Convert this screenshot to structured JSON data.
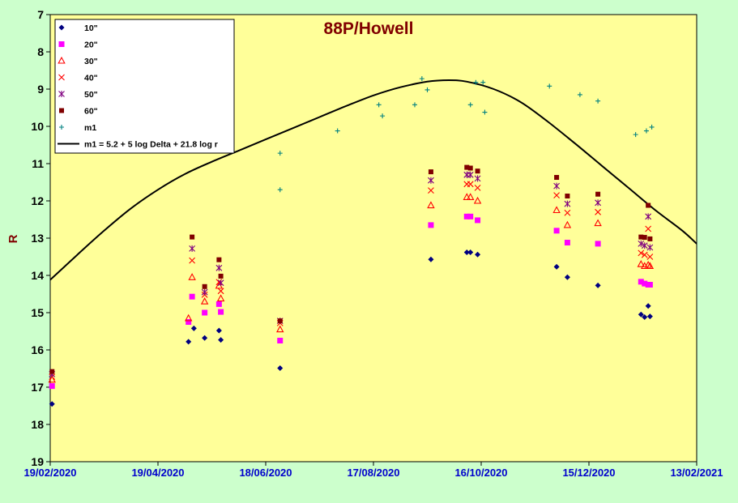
{
  "chart_data": {
    "type": "scatter",
    "title": "88P/Howell",
    "ylabel": "R",
    "xlabel": "",
    "x_is_date": true,
    "xlim": [
      "2020-02-19",
      "2021-02-13"
    ],
    "ylim": [
      7,
      19
    ],
    "y_inverted": true,
    "grid": false,
    "legend_position": "top-left",
    "x_tick_labels": [
      "19/02/2020",
      "19/04/2020",
      "18/06/2020",
      "17/08/2020",
      "16/10/2020",
      "15/12/2020",
      "13/02/2021"
    ],
    "x_tick_dates": [
      "2020-02-19",
      "2020-04-19",
      "2020-06-18",
      "2020-08-17",
      "2020-10-16",
      "2020-12-15",
      "2021-02-13"
    ],
    "y_ticks": [
      7,
      8,
      9,
      10,
      11,
      12,
      13,
      14,
      15,
      16,
      17,
      18,
      19
    ],
    "colors": {
      "plot_background": "#ffff99",
      "page_background": "#ccffcc",
      "x_tick_color": "#0000cc",
      "title_color": "#800000"
    },
    "series": [
      {
        "name": "10\"",
        "marker": "diamond",
        "color": "#000080",
        "points": [
          [
            "2020-02-20",
            17.45
          ],
          [
            "2020-05-06",
            15.78
          ],
          [
            "2020-05-09",
            15.42
          ],
          [
            "2020-05-15",
            15.68
          ],
          [
            "2020-05-23",
            15.48
          ],
          [
            "2020-05-24",
            15.73
          ],
          [
            "2020-06-26",
            16.49
          ],
          [
            "2020-09-18",
            13.57
          ],
          [
            "2020-10-08",
            13.38
          ],
          [
            "2020-10-10",
            13.38
          ],
          [
            "2020-10-14",
            13.44
          ],
          [
            "2020-11-27",
            13.77
          ],
          [
            "2020-12-03",
            14.05
          ],
          [
            "2020-12-20",
            14.27
          ],
          [
            "2021-01-13",
            15.05
          ],
          [
            "2021-01-15",
            15.12
          ],
          [
            "2021-01-17",
            14.82
          ],
          [
            "2021-01-18",
            15.1
          ]
        ]
      },
      {
        "name": "20\"",
        "marker": "square",
        "color": "#ff00ff",
        "points": [
          [
            "2020-02-20",
            16.97
          ],
          [
            "2020-05-06",
            15.25
          ],
          [
            "2020-05-08",
            14.57
          ],
          [
            "2020-05-15",
            15.0
          ],
          [
            "2020-05-23",
            14.77
          ],
          [
            "2020-05-24",
            14.98
          ],
          [
            "2020-06-26",
            15.75
          ],
          [
            "2020-09-18",
            12.65
          ],
          [
            "2020-10-08",
            12.42
          ],
          [
            "2020-10-10",
            12.42
          ],
          [
            "2020-10-14",
            12.52
          ],
          [
            "2020-11-27",
            12.8
          ],
          [
            "2020-12-03",
            13.12
          ],
          [
            "2020-12-20",
            13.15
          ],
          [
            "2021-01-13",
            14.17
          ],
          [
            "2021-01-15",
            14.22
          ],
          [
            "2021-01-17",
            14.25
          ],
          [
            "2021-01-18",
            14.25
          ]
        ]
      },
      {
        "name": "30\"",
        "marker": "triangle",
        "color": "#ff0000",
        "points": [
          [
            "2020-02-20",
            16.8
          ],
          [
            "2020-05-06",
            15.15
          ],
          [
            "2020-05-08",
            14.05
          ],
          [
            "2020-05-15",
            14.7
          ],
          [
            "2020-05-23",
            14.28
          ],
          [
            "2020-05-24",
            14.62
          ],
          [
            "2020-06-26",
            15.45
          ],
          [
            "2020-09-18",
            12.12
          ],
          [
            "2020-10-08",
            11.9
          ],
          [
            "2020-10-10",
            11.9
          ],
          [
            "2020-10-14",
            12.0
          ],
          [
            "2020-11-27",
            12.25
          ],
          [
            "2020-12-03",
            12.65
          ],
          [
            "2020-12-20",
            12.6
          ],
          [
            "2021-01-13",
            13.7
          ],
          [
            "2021-01-15",
            13.75
          ],
          [
            "2021-01-17",
            13.72
          ],
          [
            "2021-01-18",
            13.75
          ]
        ]
      },
      {
        "name": "40\"",
        "marker": "x",
        "color": "#ff0000",
        "points": [
          [
            "2020-02-20",
            16.72
          ],
          [
            "2020-05-08",
            13.6
          ],
          [
            "2020-05-15",
            14.52
          ],
          [
            "2020-05-23",
            14.18
          ],
          [
            "2020-05-24",
            14.42
          ],
          [
            "2020-06-26",
            15.28
          ],
          [
            "2020-09-18",
            11.72
          ],
          [
            "2020-10-08",
            11.55
          ],
          [
            "2020-10-10",
            11.55
          ],
          [
            "2020-10-14",
            11.65
          ],
          [
            "2020-11-27",
            11.85
          ],
          [
            "2020-12-03",
            12.32
          ],
          [
            "2020-12-20",
            12.3
          ],
          [
            "2021-01-13",
            13.4
          ],
          [
            "2021-01-15",
            13.45
          ],
          [
            "2021-01-17",
            12.75
          ],
          [
            "2021-01-18",
            13.5
          ]
        ]
      },
      {
        "name": "50\"",
        "marker": "star",
        "color": "#800080",
        "points": [
          [
            "2020-02-20",
            16.65
          ],
          [
            "2020-05-08",
            13.28
          ],
          [
            "2020-05-15",
            14.45
          ],
          [
            "2020-05-23",
            13.8
          ],
          [
            "2020-05-24",
            14.2
          ],
          [
            "2020-06-26",
            15.22
          ],
          [
            "2020-09-18",
            11.45
          ],
          [
            "2020-10-08",
            11.3
          ],
          [
            "2020-10-10",
            11.3
          ],
          [
            "2020-10-14",
            11.4
          ],
          [
            "2020-11-27",
            11.6
          ],
          [
            "2020-12-03",
            12.08
          ],
          [
            "2020-12-20",
            12.05
          ],
          [
            "2021-01-13",
            13.15
          ],
          [
            "2021-01-15",
            13.2
          ],
          [
            "2021-01-17",
            12.42
          ],
          [
            "2021-01-18",
            13.25
          ]
        ]
      },
      {
        "name": "60\"",
        "marker": "square-small",
        "color": "#800000",
        "points": [
          [
            "2020-02-20",
            16.58
          ],
          [
            "2020-05-08",
            12.97
          ],
          [
            "2020-05-15",
            14.3
          ],
          [
            "2020-05-23",
            13.58
          ],
          [
            "2020-05-24",
            14.02
          ],
          [
            "2020-06-26",
            15.22
          ],
          [
            "2020-09-18",
            11.22
          ],
          [
            "2020-10-08",
            11.1
          ],
          [
            "2020-10-10",
            11.12
          ],
          [
            "2020-10-14",
            11.2
          ],
          [
            "2020-11-27",
            11.37
          ],
          [
            "2020-12-03",
            11.87
          ],
          [
            "2020-12-20",
            11.82
          ],
          [
            "2021-01-13",
            12.97
          ],
          [
            "2021-01-15",
            12.98
          ],
          [
            "2021-01-17",
            12.12
          ],
          [
            "2021-01-18",
            13.02
          ]
        ]
      },
      {
        "name": "m1",
        "marker": "plus",
        "color": "#008080",
        "points": [
          [
            "2020-06-26",
            10.72
          ],
          [
            "2020-06-26",
            11.7
          ],
          [
            "2020-07-28",
            10.12
          ],
          [
            "2020-08-20",
            9.42
          ],
          [
            "2020-08-22",
            9.72
          ],
          [
            "2020-09-09",
            9.42
          ],
          [
            "2020-09-13",
            8.72
          ],
          [
            "2020-09-16",
            9.02
          ],
          [
            "2020-10-10",
            9.42
          ],
          [
            "2020-10-13",
            8.82
          ],
          [
            "2020-10-17",
            8.82
          ],
          [
            "2020-10-18",
            9.62
          ],
          [
            "2020-11-23",
            8.92
          ],
          [
            "2020-12-10",
            9.15
          ],
          [
            "2020-12-20",
            9.32
          ],
          [
            "2021-01-10",
            10.22
          ],
          [
            "2021-01-16",
            10.12
          ],
          [
            "2021-01-19",
            10.02
          ]
        ]
      }
    ],
    "model_curve": {
      "name": "m1 = 5.2 + 5 log Delta + 21.8 log r",
      "color": "#000000",
      "points": [
        [
          "2020-02-19",
          14.12
        ],
        [
          "2020-03-05",
          13.45
        ],
        [
          "2020-03-20",
          12.8
        ],
        [
          "2020-04-04",
          12.2
        ],
        [
          "2020-04-19",
          11.7
        ],
        [
          "2020-05-04",
          11.28
        ],
        [
          "2020-05-19",
          10.95
        ],
        [
          "2020-06-03",
          10.65
        ],
        [
          "2020-06-18",
          10.35
        ],
        [
          "2020-07-03",
          10.05
        ],
        [
          "2020-07-18",
          9.75
        ],
        [
          "2020-08-02",
          9.45
        ],
        [
          "2020-08-17",
          9.17
        ],
        [
          "2020-09-01",
          8.95
        ],
        [
          "2020-09-16",
          8.8
        ],
        [
          "2020-09-28",
          8.76
        ],
        [
          "2020-10-08",
          8.8
        ],
        [
          "2020-10-23",
          9.0
        ],
        [
          "2020-11-07",
          9.35
        ],
        [
          "2020-11-22",
          9.87
        ],
        [
          "2020-12-07",
          10.45
        ],
        [
          "2020-12-22",
          11.05
        ],
        [
          "2021-01-06",
          11.65
        ],
        [
          "2021-01-21",
          12.25
        ],
        [
          "2021-02-05",
          12.8
        ],
        [
          "2021-02-13",
          13.15
        ]
      ]
    }
  }
}
